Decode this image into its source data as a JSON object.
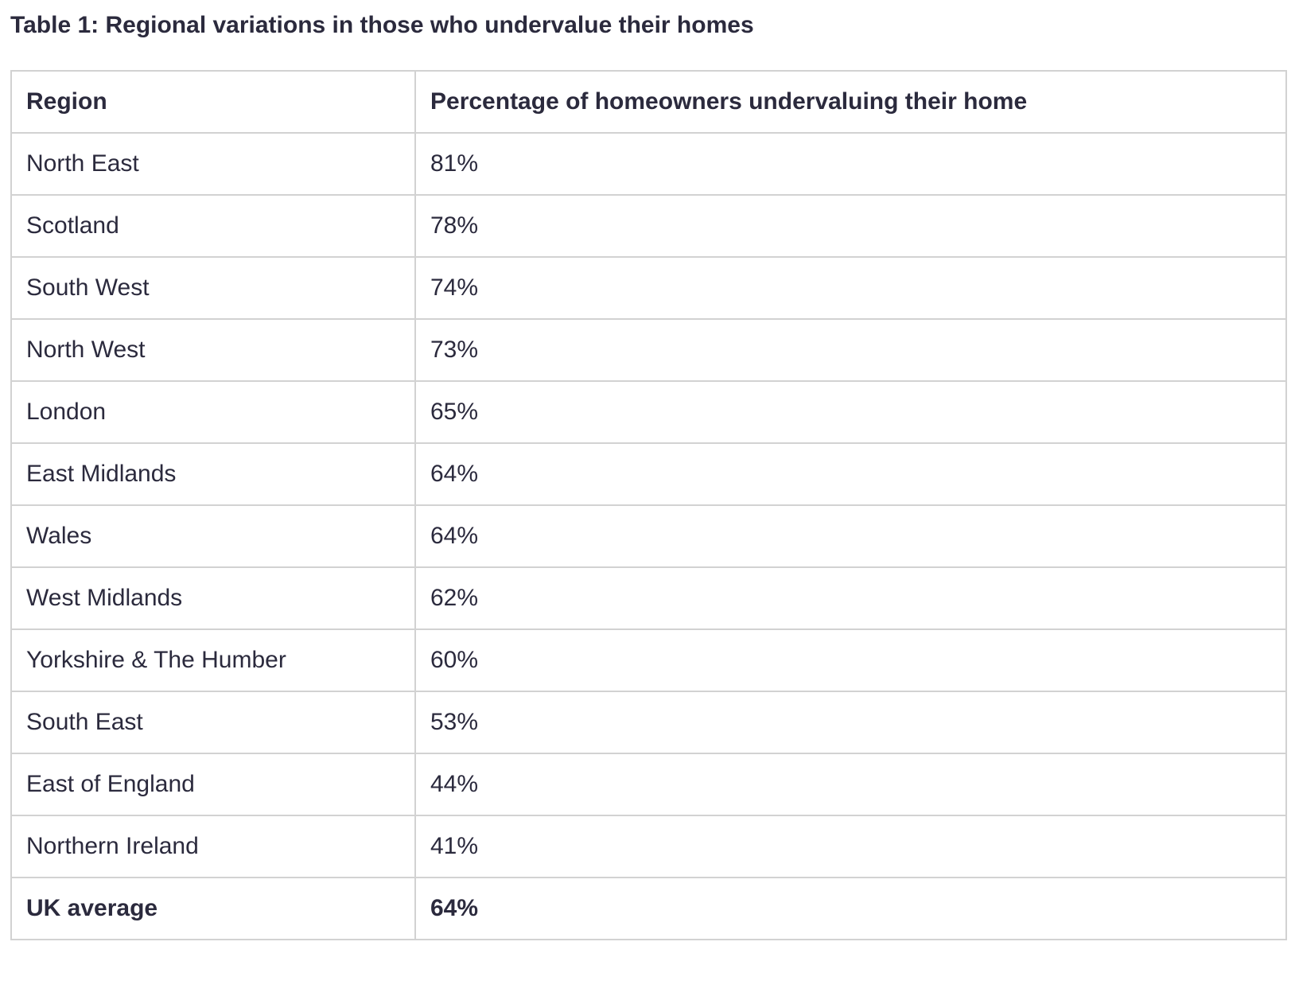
{
  "caption": "Table 1: Regional variations in those who undervalue their homes",
  "table": {
    "headers": {
      "region": "Region",
      "percentage": "Percentage of homeowners undervaluing their home"
    },
    "rows": [
      {
        "region": "North East",
        "percentage": "81%"
      },
      {
        "region": "Scotland",
        "percentage": "78%"
      },
      {
        "region": "South West",
        "percentage": "74%"
      },
      {
        "region": "North West",
        "percentage": "73%"
      },
      {
        "region": "London",
        "percentage": "65%"
      },
      {
        "region": "East Midlands",
        "percentage": "64%"
      },
      {
        "region": "Wales",
        "percentage": "64%"
      },
      {
        "region": "West Midlands",
        "percentage": "62%"
      },
      {
        "region": "Yorkshire & The Humber",
        "percentage": "60%"
      },
      {
        "region": "South East",
        "percentage": "53%"
      },
      {
        "region": "East of England",
        "percentage": "44%"
      },
      {
        "region": "Northern Ireland",
        "percentage": "41%"
      }
    ],
    "summary": {
      "region": "UK average",
      "percentage": "64%"
    }
  },
  "colors": {
    "text": "#2b2a3d",
    "border": "#d2d2d2",
    "background": "#ffffff"
  }
}
